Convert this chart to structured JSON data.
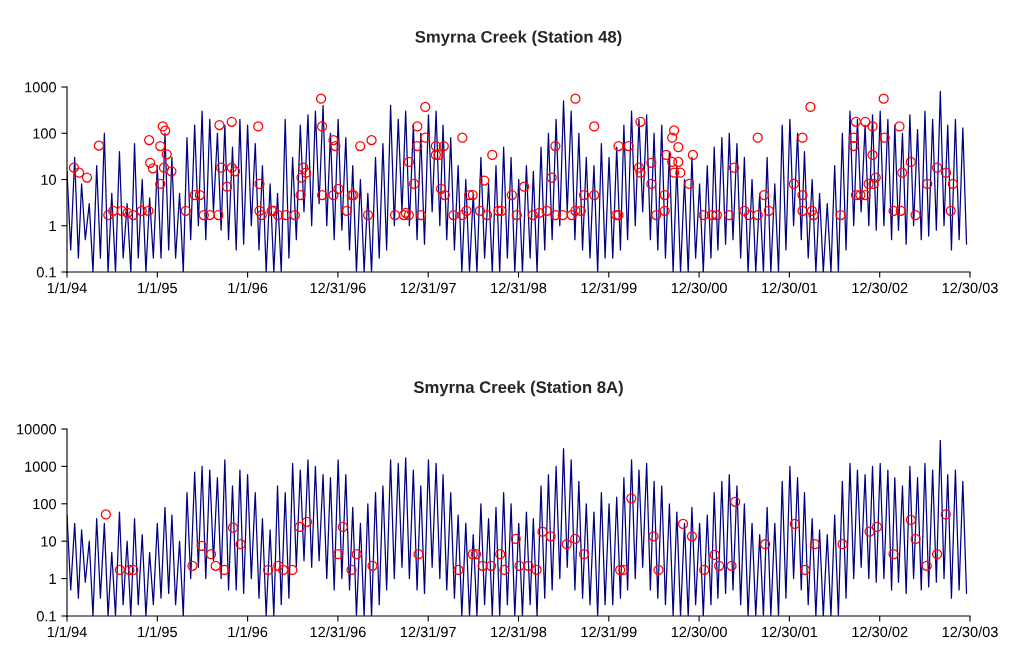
{
  "chart_data": [
    {
      "type": "line",
      "title": "Smyrna Creek (Station 48)",
      "log": true,
      "xlim": [
        "1994-01-01",
        "2003-12-30"
      ],
      "xticks": [
        {
          "value": "1994-01-01",
          "label": "1/1/94"
        },
        {
          "value": "1995-01-01",
          "label": "1/1/95"
        },
        {
          "value": "1996-01-01",
          "label": "1/1/96"
        },
        {
          "value": "1996-12-31",
          "label": "12/31/96"
        },
        {
          "value": "1997-12-31",
          "label": "12/31/97"
        },
        {
          "value": "1998-12-31",
          "label": "12/31/98"
        },
        {
          "value": "1999-12-31",
          "label": "12/31/99"
        },
        {
          "value": "2000-12-30",
          "label": "12/30/00"
        },
        {
          "value": "2001-12-30",
          "label": "12/30/01"
        },
        {
          "value": "2002-12-30",
          "label": "12/30/02"
        },
        {
          "value": "2003-12-30",
          "label": "12/30/03"
        }
      ],
      "ylim": [
        0.1,
        1000
      ],
      "yticks": [
        0.1,
        1,
        10,
        100,
        1000
      ],
      "x": [
        "1994-01-01",
        "1994-01-16",
        "1994-02-01",
        "1994-02-16",
        "1994-03-01",
        "1994-03-16",
        "1994-04-01",
        "1994-04-16",
        "1994-05-01",
        "1994-05-16",
        "1994-06-01",
        "1994-06-16",
        "1994-07-01",
        "1994-07-16",
        "1994-08-01",
        "1994-08-16",
        "1994-09-01",
        "1994-09-16",
        "1994-10-01",
        "1994-10-16",
        "1994-11-01",
        "1994-11-16",
        "1994-12-01",
        "1994-12-16",
        "1995-01-01",
        "1995-01-16",
        "1995-02-01",
        "1995-02-16",
        "1995-03-01",
        "1995-03-16",
        "1995-04-01",
        "1995-04-16",
        "1995-05-01",
        "1995-05-16",
        "1995-06-01",
        "1995-06-16",
        "1995-07-01",
        "1995-07-16",
        "1995-08-01",
        "1995-08-16",
        "1995-09-01",
        "1995-09-16",
        "1995-10-01",
        "1995-10-16",
        "1995-11-01",
        "1995-11-16",
        "1995-12-01",
        "1995-12-16",
        "1996-01-01",
        "1996-01-16",
        "1996-02-01",
        "1996-02-16",
        "1996-03-01",
        "1996-03-16",
        "1996-04-01",
        "1996-04-16",
        "1996-05-01",
        "1996-05-16",
        "1996-06-01",
        "1996-06-16",
        "1996-07-01",
        "1996-07-16",
        "1996-08-01",
        "1996-08-16",
        "1996-09-01",
        "1996-09-16",
        "1996-10-01",
        "1996-10-16",
        "1996-11-01",
        "1996-11-16",
        "1996-12-01",
        "1996-12-16",
        "1997-01-01",
        "1997-01-16",
        "1997-02-01",
        "1997-02-16",
        "1997-03-01",
        "1997-03-16",
        "1997-04-01",
        "1997-04-16",
        "1997-05-01",
        "1997-05-16",
        "1997-06-01",
        "1997-06-16",
        "1997-07-01",
        "1997-07-16",
        "1997-08-01",
        "1997-08-16",
        "1997-09-01",
        "1997-09-16",
        "1997-10-01",
        "1997-10-16",
        "1997-11-01",
        "1997-11-16",
        "1997-12-01",
        "1997-12-16",
        "1998-01-01",
        "1998-01-16",
        "1998-02-01",
        "1998-02-16",
        "1998-03-01",
        "1998-03-16",
        "1998-04-01",
        "1998-04-16",
        "1998-05-01",
        "1998-05-16",
        "1998-06-01",
        "1998-06-16",
        "1998-07-01",
        "1998-07-16",
        "1998-08-01",
        "1998-08-16",
        "1998-09-01",
        "1998-09-16",
        "1998-10-01",
        "1998-10-16",
        "1998-11-01",
        "1998-11-16",
        "1998-12-01",
        "1998-12-16",
        "1999-01-01",
        "1999-01-16",
        "1999-02-01",
        "1999-02-16",
        "1999-03-01",
        "1999-03-16",
        "1999-04-01",
        "1999-04-16",
        "1999-05-01",
        "1999-05-16",
        "1999-06-01",
        "1999-06-16",
        "1999-07-01",
        "1999-07-16",
        "1999-08-01",
        "1999-08-16",
        "1999-09-01",
        "1999-09-16",
        "1999-10-01",
        "1999-10-16",
        "1999-11-01",
        "1999-11-16",
        "1999-12-01",
        "1999-12-16",
        "2000-01-01",
        "2000-01-16",
        "2000-02-01",
        "2000-02-16",
        "2000-03-01",
        "2000-03-16",
        "2000-04-01",
        "2000-04-16",
        "2000-05-01",
        "2000-05-16",
        "2000-06-01",
        "2000-06-16",
        "2000-07-01",
        "2000-07-16",
        "2000-08-01",
        "2000-08-16",
        "2000-09-01",
        "2000-09-16",
        "2000-10-01",
        "2000-10-16",
        "2000-11-01",
        "2000-11-16",
        "2000-12-01",
        "2000-12-16",
        "2001-01-01",
        "2001-01-16",
        "2001-02-01",
        "2001-02-16",
        "2001-03-01",
        "2001-03-16",
        "2001-04-01",
        "2001-04-16",
        "2001-05-01",
        "2001-05-16",
        "2001-06-01",
        "2001-06-16",
        "2001-07-01",
        "2001-07-16",
        "2001-08-01",
        "2001-08-16",
        "2001-09-01",
        "2001-09-16",
        "2001-10-01",
        "2001-10-16",
        "2001-11-01",
        "2001-11-16",
        "2001-12-01",
        "2001-12-16",
        "2002-01-01",
        "2002-01-16",
        "2002-02-01",
        "2002-02-16",
        "2002-03-01",
        "2002-03-16",
        "2002-04-01",
        "2002-04-16",
        "2002-05-01",
        "2002-05-16",
        "2002-06-01",
        "2002-06-16",
        "2002-07-01",
        "2002-07-16",
        "2002-08-01",
        "2002-08-16",
        "2002-09-01",
        "2002-09-16",
        "2002-10-01",
        "2002-10-16",
        "2002-11-01",
        "2002-11-16",
        "2002-12-01",
        "2002-12-16",
        "2003-01-01",
        "2003-01-16",
        "2003-02-01",
        "2003-02-16",
        "2003-03-01",
        "2003-03-16",
        "2003-04-01",
        "2003-04-16",
        "2003-05-01",
        "2003-05-16",
        "2003-06-01",
        "2003-06-16",
        "2003-07-01",
        "2003-07-16",
        "2003-08-01",
        "2003-08-16",
        "2003-09-01",
        "2003-09-16",
        "2003-10-01",
        "2003-10-16",
        "2003-11-01",
        "2003-11-16",
        "2003-12-01",
        "2003-12-16"
      ],
      "series": [
        {
          "color": "#000080",
          "values": [
            15,
            0.3,
            30,
            0.2,
            8,
            0.5,
            3,
            0.1,
            20,
            0.2,
            100,
            0.1,
            5,
            0.1,
            40,
            0.2,
            3,
            0.1,
            60,
            0.2,
            10,
            0.1,
            4,
            0.2,
            20,
            0.2,
            100,
            0.3,
            30,
            0.2,
            5,
            0.1,
            80,
            0.5,
            150,
            1,
            300,
            0.5,
            200,
            2,
            100,
            0.8,
            150,
            0.5,
            50,
            0.3,
            200,
            0.4,
            150,
            1,
            60,
            0.3,
            20,
            0.1,
            8,
            0.1,
            5,
            0.1,
            200,
            0.2,
            30,
            0.5,
            150,
            2,
            250,
            1,
            300,
            3,
            400,
            1,
            100,
            0.5,
            200,
            0.8,
            80,
            0.3,
            20,
            0.1,
            10,
            0.1,
            5,
            0.1,
            30,
            0.2,
            60,
            0.3,
            400,
            1,
            200,
            2,
            300,
            1,
            150,
            0.5,
            100,
            0.4,
            250,
            2,
            300,
            1,
            150,
            0.5,
            80,
            0.3,
            20,
            0.1,
            10,
            0.1,
            5,
            0.1,
            30,
            0.2,
            8,
            0.1,
            20,
            0.1,
            50,
            0.2,
            30,
            0.1,
            10,
            0.1,
            20,
            0.2,
            15,
            0.1,
            50,
            0.3,
            100,
            0.5,
            200,
            1,
            500,
            2,
            300,
            0.5,
            100,
            0.3,
            30,
            0.2,
            20,
            0.1,
            60,
            0.2,
            30,
            0.2,
            50,
            0.3,
            150,
            0.5,
            300,
            1,
            200,
            2,
            250,
            0.5,
            100,
            0.3,
            150,
            0.2,
            40,
            0.1,
            20,
            0.1,
            10,
            0.1,
            30,
            0.2,
            8,
            0.1,
            20,
            0.2,
            50,
            0.3,
            80,
            0.4,
            100,
            0.5,
            60,
            0.2,
            30,
            0.1,
            10,
            0.1,
            5,
            0.1,
            30,
            0.1,
            8,
            0.1,
            150,
            0.3,
            200,
            1,
            100,
            0.5,
            40,
            0.2,
            10,
            0.1,
            5,
            0.1,
            3,
            0.1,
            20,
            0.1,
            100,
            0.3,
            300,
            1,
            200,
            2,
            150,
            1,
            250,
            0.8,
            300,
            1,
            200,
            0.5,
            150,
            0.8,
            100,
            0.4,
            250,
            1,
            120,
            0.5,
            300,
            0.6,
            200,
            0.8,
            800,
            1,
            150,
            0.3,
            200,
            0.5,
            130,
            0.4
          ]
        },
        {
          "type": "scatter",
          "color": "#ff0000",
          "marker": "circle",
          "x": [
            "1994-01-29",
            "1994-02-19",
            "1994-03-23",
            "1994-05-10",
            "1994-06-17",
            "1994-07-07",
            "1994-08-10",
            "1994-09-03",
            "1994-09-26",
            "1994-10-30",
            "1994-11-26",
            "1994-11-29",
            "1994-12-03",
            "1994-12-14",
            "1995-01-13",
            "1995-01-13",
            "1995-01-23",
            "1995-02-02",
            "1995-02-08",
            "1995-01-28",
            "1995-02-27",
            "1995-04-26",
            "1995-06-02",
            "1995-06-22",
            "1995-07-08",
            "1995-08-01",
            "1995-09-05",
            "1995-09-09",
            "1995-09-16",
            "1995-10-10",
            "1995-10-29",
            "1995-10-29",
            "1995-11-11",
            "1996-02-13",
            "1996-02-18",
            "1996-02-18",
            "1996-02-27",
            "1996-04-07",
            "1996-04-15",
            "1996-05-03",
            "1996-06-04",
            "1996-07-10",
            "1996-08-02",
            "1996-08-06",
            "1996-08-13",
            "1996-08-24",
            "1996-10-24",
            "1996-10-28",
            "1996-10-28",
            "1996-12-13",
            "1996-12-21",
            "1996-12-13",
            "1997-01-02",
            "1997-02-05",
            "1997-02-25",
            "1997-03-04",
            "1997-03-31",
            "1997-05-02",
            "1997-05-16",
            "1997-08-19",
            "1997-09-24",
            "1997-10-01",
            "1997-10-14",
            "1997-11-04",
            "1997-10-14",
            "1997-11-17",
            "1997-11-17",
            "1997-12-02",
            "1997-12-19",
            "1997-12-19",
            "1998-01-31",
            "1998-01-31",
            "1998-02-11",
            "1998-03-04",
            "1998-02-21",
            "1998-03-08",
            "1998-04-12",
            "1998-05-18",
            "1998-05-18",
            "1998-06-04",
            "1998-06-15",
            "1998-06-29",
            "1998-07-28",
            "1998-08-15",
            "1998-08-26",
            "1998-09-16",
            "1998-10-11",
            "1998-10-23",
            "1998-12-04",
            "1998-12-24",
            "1999-01-23",
            "1999-02-27",
            "1999-03-25",
            "1999-04-24",
            "1999-05-14",
            "1999-05-29",
            "1999-05-29",
            "1999-06-28",
            "1999-08-03",
            "1999-08-18",
            "1999-08-18",
            "1999-09-09",
            "1999-09-22",
            "1999-11-02",
            "1999-11-02",
            "2000-01-30",
            "2000-02-08",
            "2000-02-08",
            "2000-03-20",
            "2000-05-01",
            "2000-05-07",
            "2000-05-07",
            "2000-06-20",
            "2000-06-20",
            "2000-07-10",
            "2000-08-13",
            "2000-08-13",
            "2000-08-19",
            "2000-09-12",
            "2000-09-20",
            "2000-09-12",
            "2000-10-07",
            "2000-10-07",
            "2000-09-20",
            "2000-10-15",
            "2000-11-20",
            "2000-12-05",
            "2001-01-17",
            "2001-02-20",
            "2001-03-12",
            "2001-04-30",
            "2001-05-20",
            "2001-07-01",
            "2001-07-20",
            "2001-08-24",
            "2001-08-24",
            "2001-09-19",
            "2001-10-08",
            "2002-01-17",
            "2002-02-21",
            "2002-02-21",
            "2002-02-21",
            "2002-03-25",
            "2002-03-31",
            "2002-04-07",
            "2002-07-25",
            "2002-09-16",
            "2002-09-16",
            "2002-09-25",
            "2002-09-25",
            "2002-10-13",
            "2002-11-02",
            "2002-11-02",
            "2002-11-15",
            "2002-12-01",
            "2002-12-01",
            "2002-12-05",
            "2002-12-14",
            "2003-01-15",
            "2003-01-19",
            "2003-02-24",
            "2003-03-20",
            "2003-03-25",
            "2003-03-31",
            "2003-05-05",
            "2003-05-24",
            "2003-07-10",
            "2003-08-19",
            "2003-09-24",
            "2003-10-13",
            "2003-10-22"
          ],
          "values": [
            18,
            14,
            11,
            54,
            1.7,
            2.1,
            2.1,
            1.9,
            1.7,
            2.1,
            2.1,
            71,
            23,
            17.5,
            53,
            8,
            140,
            114,
            35,
            18,
            15,
            2.1,
            4.6,
            4.6,
            1.7,
            1.7,
            1.7,
            150,
            18,
            7,
            177,
            18,
            15,
            140,
            8,
            2.1,
            1.7,
            2.1,
            2.1,
            1.7,
            1.7,
            1.7,
            4.6,
            11,
            18,
            14,
            560,
            140,
            4.6,
            71,
            53,
            4.6,
            6.3,
            2.1,
            4.6,
            4.6,
            53,
            1.7,
            71,
            1.7,
            1.7,
            1.9,
            1.7,
            8,
            24,
            140,
            53,
            1.7,
            370,
            80,
            53,
            34,
            34,
            53,
            6.3,
            4.6,
            1.7,
            80,
            1.7,
            2.1,
            4.6,
            4.6,
            2.1,
            9.5,
            1.7,
            34,
            2.1,
            2.1,
            4.6,
            1.7,
            7,
            1.7,
            1.9,
            2.1,
            11,
            53,
            1.7,
            1.7,
            1.7,
            560,
            2.1,
            2.1,
            4.6,
            140,
            4.6,
            1.7,
            53,
            1.7,
            53,
            18,
            177,
            14,
            23,
            8,
            1.7,
            4.6,
            2.1,
            34,
            80,
            115,
            24,
            50,
            24,
            14,
            14,
            8,
            34,
            1.7,
            1.7,
            1.7,
            1.7,
            18,
            2.1,
            1.7,
            80,
            1.7,
            4.6,
            2.1,
            8,
            80,
            4.6,
            2.1,
            370,
            2.1,
            1.7,
            1.7,
            80,
            53,
            177,
            4.6,
            4.6,
            177,
            4.6,
            8,
            140,
            34,
            8,
            11,
            560,
            80,
            2.1,
            140,
            2.1,
            14,
            24,
            1.7,
            8,
            18,
            14,
            2.1,
            8
          ]
        }
      ]
    },
    {
      "type": "line",
      "title": "Smyrna Creek (Station 8A)",
      "log": true,
      "xlim": [
        "1994-01-01",
        "2003-12-30"
      ],
      "xticks": [
        {
          "value": "1994-01-01",
          "label": "1/1/94"
        },
        {
          "value": "1995-01-01",
          "label": "1/1/95"
        },
        {
          "value": "1996-01-01",
          "label": "1/1/96"
        },
        {
          "value": "1996-12-31",
          "label": "12/31/96"
        },
        {
          "value": "1997-12-31",
          "label": "12/31/97"
        },
        {
          "value": "1998-12-31",
          "label": "12/31/98"
        },
        {
          "value": "1999-12-31",
          "label": "12/31/99"
        },
        {
          "value": "2000-12-30",
          "label": "12/30/00"
        },
        {
          "value": "2001-12-30",
          "label": "12/30/01"
        },
        {
          "value": "2002-12-30",
          "label": "12/30/02"
        },
        {
          "value": "2003-12-30",
          "label": "12/30/03"
        }
      ],
      "ylim": [
        0.1,
        10000
      ],
      "yticks": [
        0.1,
        1,
        10,
        100,
        1000,
        10000
      ],
      "x": [
        "1994-01-01",
        "1994-01-16",
        "1994-02-01",
        "1994-02-16",
        "1994-03-01",
        "1994-03-16",
        "1994-04-01",
        "1994-04-16",
        "1994-05-01",
        "1994-05-16",
        "1994-06-01",
        "1994-06-16",
        "1994-07-01",
        "1994-07-16",
        "1994-08-01",
        "1994-08-16",
        "1994-09-01",
        "1994-09-16",
        "1994-10-01",
        "1994-10-16",
        "1994-11-01",
        "1994-11-16",
        "1994-12-01",
        "1994-12-16",
        "1995-01-01",
        "1995-01-16",
        "1995-02-01",
        "1995-02-16",
        "1995-03-01",
        "1995-03-16",
        "1995-04-01",
        "1995-04-16",
        "1995-05-01",
        "1995-05-16",
        "1995-06-01",
        "1995-06-16",
        "1995-07-01",
        "1995-07-16",
        "1995-08-01",
        "1995-08-16",
        "1995-09-01",
        "1995-09-16",
        "1995-10-01",
        "1995-10-16",
        "1995-11-01",
        "1995-11-16",
        "1995-12-01",
        "1995-12-16",
        "1996-01-01",
        "1996-01-16",
        "1996-02-01",
        "1996-02-16",
        "1996-03-01",
        "1996-03-16",
        "1996-04-01",
        "1996-04-16",
        "1996-05-01",
        "1996-05-16",
        "1996-06-01",
        "1996-06-16",
        "1996-07-01",
        "1996-07-16",
        "1996-08-01",
        "1996-08-16",
        "1996-09-01",
        "1996-09-16",
        "1996-10-01",
        "1996-10-16",
        "1996-11-01",
        "1996-11-16",
        "1996-12-01",
        "1996-12-16",
        "1997-01-01",
        "1997-01-16",
        "1997-02-01",
        "1997-02-16",
        "1997-03-01",
        "1997-03-16",
        "1997-04-01",
        "1997-04-16",
        "1997-05-01",
        "1997-05-16",
        "1997-06-01",
        "1997-06-16",
        "1997-07-01",
        "1997-07-16",
        "1997-08-01",
        "1997-08-16",
        "1997-09-01",
        "1997-09-16",
        "1997-10-01",
        "1997-10-16",
        "1997-11-01",
        "1997-11-16",
        "1997-12-01",
        "1997-12-16",
        "1998-01-01",
        "1998-01-16",
        "1998-02-01",
        "1998-02-16",
        "1998-03-01",
        "1998-03-16",
        "1998-04-01",
        "1998-04-16",
        "1998-05-01",
        "1998-05-16",
        "1998-06-01",
        "1998-06-16",
        "1998-07-01",
        "1998-07-16",
        "1998-08-01",
        "1998-08-16",
        "1998-09-01",
        "1998-09-16",
        "1998-10-01",
        "1998-10-16",
        "1998-11-01",
        "1998-11-16",
        "1998-12-01",
        "1998-12-16",
        "1999-01-01",
        "1999-01-16",
        "1999-02-01",
        "1999-02-16",
        "1999-03-01",
        "1999-03-16",
        "1999-04-01",
        "1999-04-16",
        "1999-05-01",
        "1999-05-16",
        "1999-06-01",
        "1999-06-16",
        "1999-07-01",
        "1999-07-16",
        "1999-08-01",
        "1999-08-16",
        "1999-09-01",
        "1999-09-16",
        "1999-10-01",
        "1999-10-16",
        "1999-11-01",
        "1999-11-16",
        "1999-12-01",
        "1999-12-16",
        "2000-01-01",
        "2000-01-16",
        "2000-02-01",
        "2000-02-16",
        "2000-03-01",
        "2000-03-16",
        "2000-04-01",
        "2000-04-16",
        "2000-05-01",
        "2000-05-16",
        "2000-06-01",
        "2000-06-16",
        "2000-07-01",
        "2000-07-16",
        "2000-08-01",
        "2000-08-16",
        "2000-09-01",
        "2000-09-16",
        "2000-10-01",
        "2000-10-16",
        "2000-11-01",
        "2000-11-16",
        "2000-12-01",
        "2000-12-16",
        "2001-01-01",
        "2001-01-16",
        "2001-02-01",
        "2001-02-16",
        "2001-03-01",
        "2001-03-16",
        "2001-04-01",
        "2001-04-16",
        "2001-05-01",
        "2001-05-16",
        "2001-06-01",
        "2001-06-16",
        "2001-07-01",
        "2001-07-16",
        "2001-08-01",
        "2001-08-16",
        "2001-09-01",
        "2001-09-16",
        "2001-10-01",
        "2001-10-16",
        "2001-11-01",
        "2001-11-16",
        "2001-12-01",
        "2001-12-16",
        "2002-01-01",
        "2002-01-16",
        "2002-02-01",
        "2002-02-16",
        "2002-03-01",
        "2002-03-16",
        "2002-04-01",
        "2002-04-16",
        "2002-05-01",
        "2002-05-16",
        "2002-06-01",
        "2002-06-16",
        "2002-07-01",
        "2002-07-16",
        "2002-08-01",
        "2002-08-16",
        "2002-09-01",
        "2002-09-16",
        "2002-10-01",
        "2002-10-16",
        "2002-11-01",
        "2002-11-16",
        "2002-12-01",
        "2002-12-16",
        "2003-01-01",
        "2003-01-16",
        "2003-02-01",
        "2003-02-16",
        "2003-03-01",
        "2003-03-16",
        "2003-04-01",
        "2003-04-16",
        "2003-05-01",
        "2003-05-16",
        "2003-06-01",
        "2003-06-16",
        "2003-07-01",
        "2003-07-16",
        "2003-08-01",
        "2003-08-16",
        "2003-09-01",
        "2003-09-16",
        "2003-10-01",
        "2003-10-16",
        "2003-11-01",
        "2003-11-16",
        "2003-12-01",
        "2003-12-16"
      ],
      "series": [
        {
          "color": "#000080",
          "values": [
            50,
            0.5,
            30,
            0.3,
            20,
            0.8,
            10,
            0.1,
            40,
            0.3,
            30,
            0.1,
            5,
            0.1,
            60,
            0.2,
            10,
            0.1,
            40,
            0.2,
            15,
            0.1,
            5,
            0.2,
            30,
            0.3,
            80,
            0.4,
            50,
            0.2,
            10,
            0.1,
            200,
            1,
            700,
            2,
            1000,
            1,
            800,
            3,
            500,
            1,
            1500,
            0.5,
            300,
            0.5,
            800,
            0.4,
            600,
            1,
            200,
            0.3,
            40,
            0.1,
            20,
            0.1,
            300,
            0.2,
            200,
            0.3,
            1200,
            2,
            800,
            3,
            1500,
            2,
            1000,
            3,
            600,
            1,
            500,
            0.5,
            1500,
            1,
            600,
            0.5,
            80,
            0.1,
            30,
            0.1,
            100,
            0.1,
            200,
            0.2,
            300,
            0.5,
            1500,
            1,
            1200,
            2,
            1700,
            1,
            800,
            0.5,
            300,
            0.4,
            1500,
            2,
            1200,
            1,
            600,
            0.5,
            200,
            0.3,
            50,
            0.1,
            30,
            0.1,
            15,
            0.1,
            100,
            0.2,
            40,
            0.1,
            80,
            0.1,
            200,
            0.2,
            100,
            0.1,
            30,
            0.1,
            60,
            0.2,
            40,
            0.1,
            300,
            0.3,
            600,
            0.5,
            1000,
            1,
            3000,
            2,
            1500,
            0.5,
            400,
            0.3,
            100,
            0.2,
            60,
            0.1,
            200,
            0.2,
            100,
            0.2,
            150,
            0.3,
            500,
            0.5,
            1500,
            1,
            800,
            2,
            1200,
            0.5,
            400,
            0.3,
            300,
            0.2,
            100,
            0.1,
            60,
            0.1,
            30,
            0.1,
            80,
            0.2,
            30,
            0.1,
            50,
            0.2,
            200,
            0.3,
            400,
            0.4,
            600,
            0.5,
            300,
            0.2,
            100,
            0.1,
            30,
            0.1,
            15,
            0.1,
            80,
            0.1,
            30,
            0.1,
            400,
            0.3,
            1000,
            1,
            500,
            0.5,
            200,
            0.2,
            40,
            0.1,
            20,
            0.1,
            15,
            0.1,
            50,
            0.1,
            400,
            0.3,
            1200,
            1,
            800,
            2,
            600,
            1,
            1000,
            0.8,
            1200,
            1,
            800,
            0.5,
            500,
            0.8,
            300,
            0.4,
            1000,
            1,
            500,
            0.5,
            1200,
            0.6,
            800,
            0.8,
            5000,
            1,
            600,
            0.3,
            800,
            0.5,
            400,
            0.4
          ]
        },
        {
          "type": "scatter",
          "color": "#ff0000",
          "marker": "circle",
          "x": [
            "1994-06-07",
            "1994-08-03",
            "1994-09-10",
            "1994-09-26",
            "1995-05-23",
            "1995-06-29",
            "1995-08-06",
            "1995-08-25",
            "1995-09-29",
            "1995-11-03",
            "1995-12-04",
            "1996-03-24",
            "1996-05-04",
            "1996-05-24",
            "1996-06-30",
            "1996-07-29",
            "1996-08-28",
            "1997-01-01",
            "1997-01-20",
            "1997-02-24",
            "1997-03-17",
            "1997-05-20",
            "1997-11-22",
            "1998-05-02",
            "1998-06-29",
            "1998-07-12",
            "1998-08-08",
            "1998-09-11",
            "1998-10-18",
            "1998-11-04",
            "1998-12-20",
            "1999-01-04",
            "1999-02-09",
            "1999-03-14",
            "1999-04-07",
            "1999-05-10",
            "1999-07-14",
            "1999-08-17",
            "1999-09-22",
            "2000-02-15",
            "2000-02-28",
            "2000-03-31",
            "2000-06-29",
            "2000-07-19",
            "2000-10-26",
            "2000-12-01",
            "2001-01-20",
            "2001-03-03",
            "2001-03-21",
            "2001-05-10",
            "2001-05-25",
            "2001-09-23",
            "2002-01-21",
            "2002-03-03",
            "2002-04-12",
            "2002-08-02",
            "2002-11-19",
            "2002-12-19",
            "2003-02-24",
            "2003-05-05",
            "2003-05-24",
            "2003-07-08",
            "2003-08-19",
            "2003-09-23"
          ],
          "values": [
            52,
            1.7,
            1.7,
            1.7,
            2.2,
            7.5,
            4.5,
            2.2,
            1.7,
            23,
            8.3,
            1.7,
            2.2,
            1.7,
            1.7,
            24,
            33,
            4.5,
            24,
            1.7,
            4.5,
            2.2,
            4.5,
            1.7,
            4.5,
            4.5,
            2.2,
            2.2,
            4.5,
            1.7,
            11.5,
            2.2,
            2.2,
            1.7,
            18,
            13.5,
            8.3,
            11.5,
            4.5,
            1.7,
            1.7,
            140,
            13.5,
            1.7,
            29,
            13.5,
            1.7,
            4.3,
            2.2,
            2.2,
            113,
            8.3,
            29,
            1.7,
            8.3,
            8.3,
            18,
            24,
            4.5,
            37,
            11.5,
            2.2,
            4.5,
            52
          ]
        }
      ]
    }
  ]
}
